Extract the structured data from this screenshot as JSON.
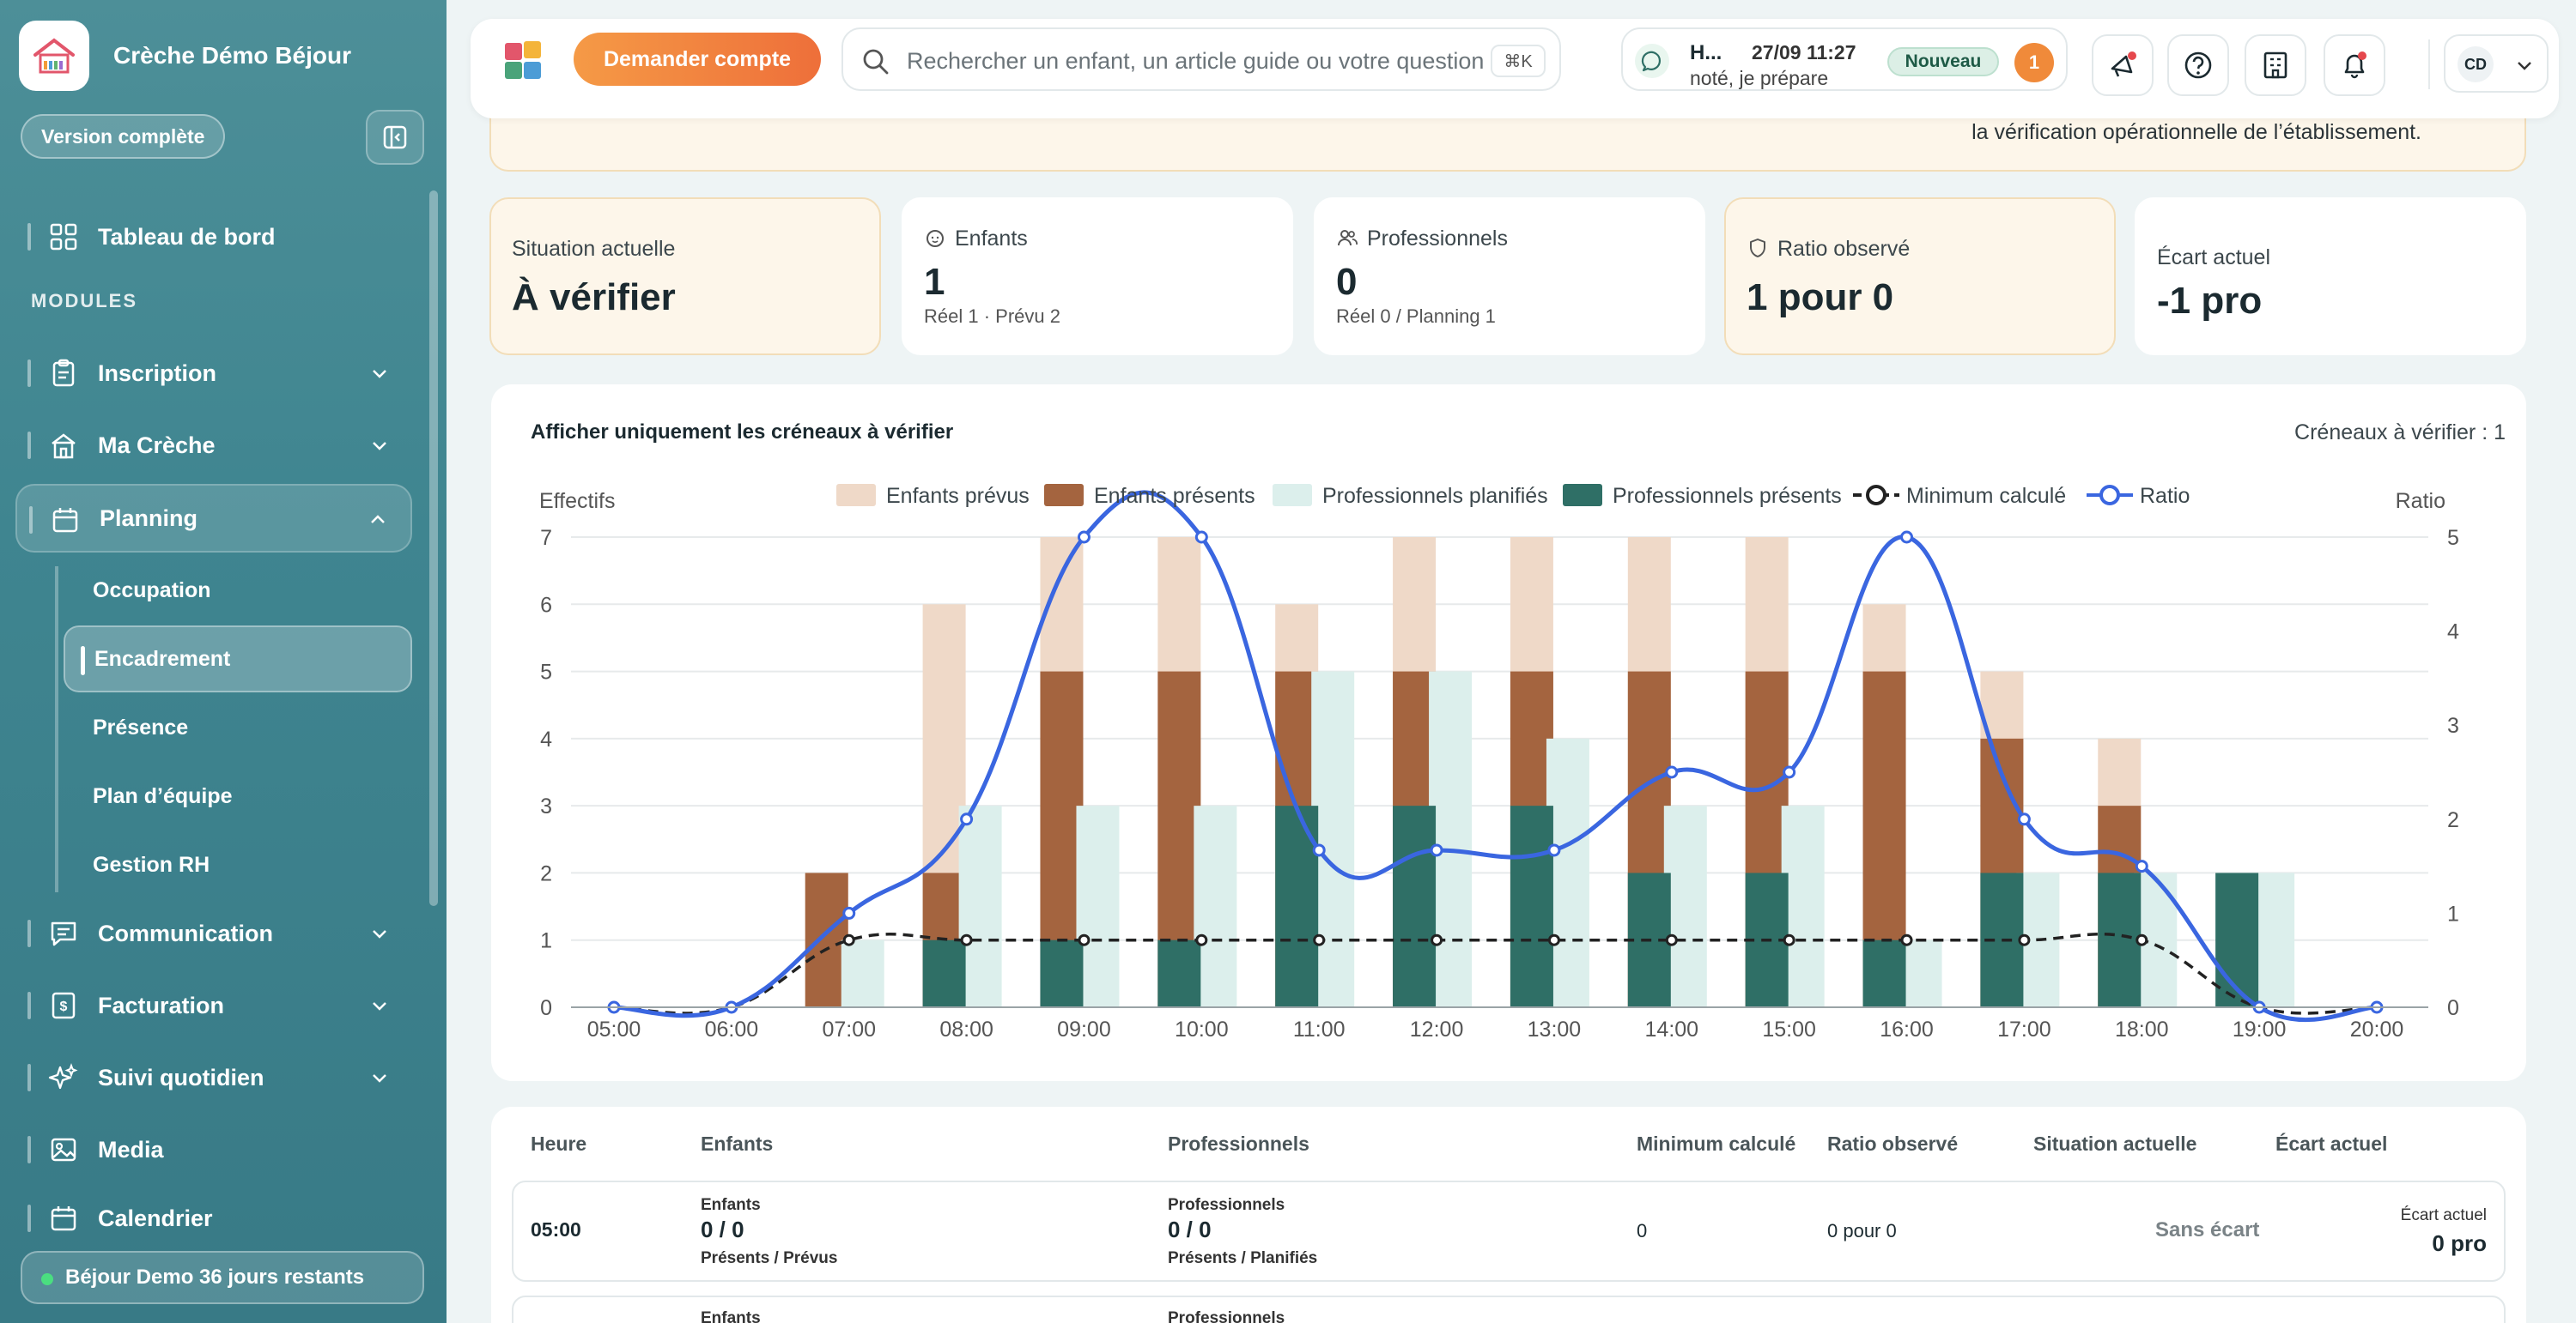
{
  "sidebar": {
    "brand": "Crèche Démo Béjour",
    "version_label": "Version complète",
    "modules_heading": "MODULES",
    "items": [
      {
        "label": "Tableau de bord"
      },
      {
        "label": "Inscription"
      },
      {
        "label": "Ma Crèche"
      },
      {
        "label": "Planning"
      },
      {
        "label": "Communication"
      },
      {
        "label": "Facturation"
      },
      {
        "label": "Suivi quotidien"
      },
      {
        "label": "Media"
      },
      {
        "label": "Calendrier"
      }
    ],
    "planning_sub": [
      "Occupation",
      "Encadrement",
      "Présence",
      "Plan d’équipe",
      "Gestion RH"
    ],
    "active_sub": "Encadrement",
    "demo_label": "Béjour Demo 36 jours restants"
  },
  "topbar": {
    "ask_button": "Demander compte",
    "search_placeholder": "Rechercher un enfant, un article guide ou votre question",
    "search_shortcut": "⌘K",
    "notification": {
      "title": "H...",
      "time": "27/09 11:27",
      "message": "noté, je prépare",
      "badge": "Nouveau",
      "count": "1"
    },
    "user_initials": "CD"
  },
  "banner": {
    "text": "la vérification opérationnelle de l’établissement."
  },
  "cards": [
    {
      "title": "Situation actuelle",
      "value": "À vérifier",
      "sub": ""
    },
    {
      "title": "Enfants",
      "value": "1",
      "sub": "Réel 1 · Prévu 2"
    },
    {
      "title": "Professionnels",
      "value": "0",
      "sub": "Réel 0 / Planning 1"
    },
    {
      "title": "Ratio observé",
      "value": "1 pour 0",
      "sub": ""
    },
    {
      "title": "Écart actuel",
      "value": "-1 pro",
      "sub": ""
    }
  ],
  "chart_card": {
    "title": "Afficher uniquement les créneaux à vérifier",
    "count": "Créneaux à vérifier : 1"
  },
  "chart_data": {
    "type": "bar",
    "ylabel": "Effectifs",
    "y2label": "Ratio",
    "ylim": [
      0,
      7
    ],
    "y2lim": [
      0,
      5
    ],
    "categories": [
      "05:00",
      "06:00",
      "07:00",
      "08:00",
      "09:00",
      "10:00",
      "11:00",
      "12:00",
      "13:00",
      "14:00",
      "15:00",
      "16:00",
      "17:00",
      "18:00",
      "19:00",
      "20:00"
    ],
    "series": [
      {
        "name": "Enfants prévus",
        "color": "#efd9c8",
        "values": [
          0,
          0,
          2,
          6,
          7,
          7,
          6,
          7,
          7,
          7,
          7,
          6,
          5,
          4,
          0,
          0
        ]
      },
      {
        "name": "Enfants présents",
        "color": "#a4643f",
        "values": [
          0,
          0,
          2,
          2,
          5,
          5,
          5,
          5,
          5,
          5,
          5,
          5,
          4,
          3,
          0,
          0
        ]
      },
      {
        "name": "Professionnels planifiés",
        "color": "#dcefec",
        "values": [
          0,
          0,
          1,
          3,
          3,
          3,
          5,
          5,
          4,
          3,
          3,
          1,
          2,
          2,
          2,
          0
        ]
      },
      {
        "name": "Professionnels présents",
        "color": "#2f6f66",
        "values": [
          0,
          0,
          0,
          1,
          1,
          1,
          3,
          3,
          3,
          2,
          2,
          1,
          2,
          2,
          2,
          0
        ]
      },
      {
        "name": "Minimum calculé",
        "color": "#222222",
        "values": [
          0,
          0,
          1,
          1,
          1,
          1,
          1,
          1,
          1,
          1,
          1,
          1,
          1,
          1,
          0,
          0
        ]
      },
      {
        "name": "Ratio",
        "color": "#3a66e0",
        "values": [
          0,
          0,
          1,
          2,
          5,
          5,
          1.67,
          1.67,
          1.67,
          2.5,
          2.5,
          5,
          2,
          1.5,
          0,
          0
        ]
      }
    ],
    "legend": "top"
  },
  "table": {
    "headers": [
      "Heure",
      "Enfants",
      "Professionnels",
      "Minimum calculé",
      "Ratio observé",
      "Situation actuelle",
      "Écart actuel"
    ],
    "rows": [
      {
        "heure": "05:00",
        "enfants_label": "Enfants",
        "enfants_value": "0 / 0",
        "enfants_sub": "Présents / Prévus",
        "pros_label": "Professionnels",
        "pros_value": "0 / 0",
        "pros_sub": "Présents / Planifiés",
        "minimum": "0",
        "ratio": "0 pour 0",
        "situation": "Sans écart",
        "ecart_label": "Écart actuel",
        "ecart_value": "0 pro"
      },
      {
        "enfants_label": "Enfants",
        "pros_label": "Professionnels"
      }
    ]
  }
}
